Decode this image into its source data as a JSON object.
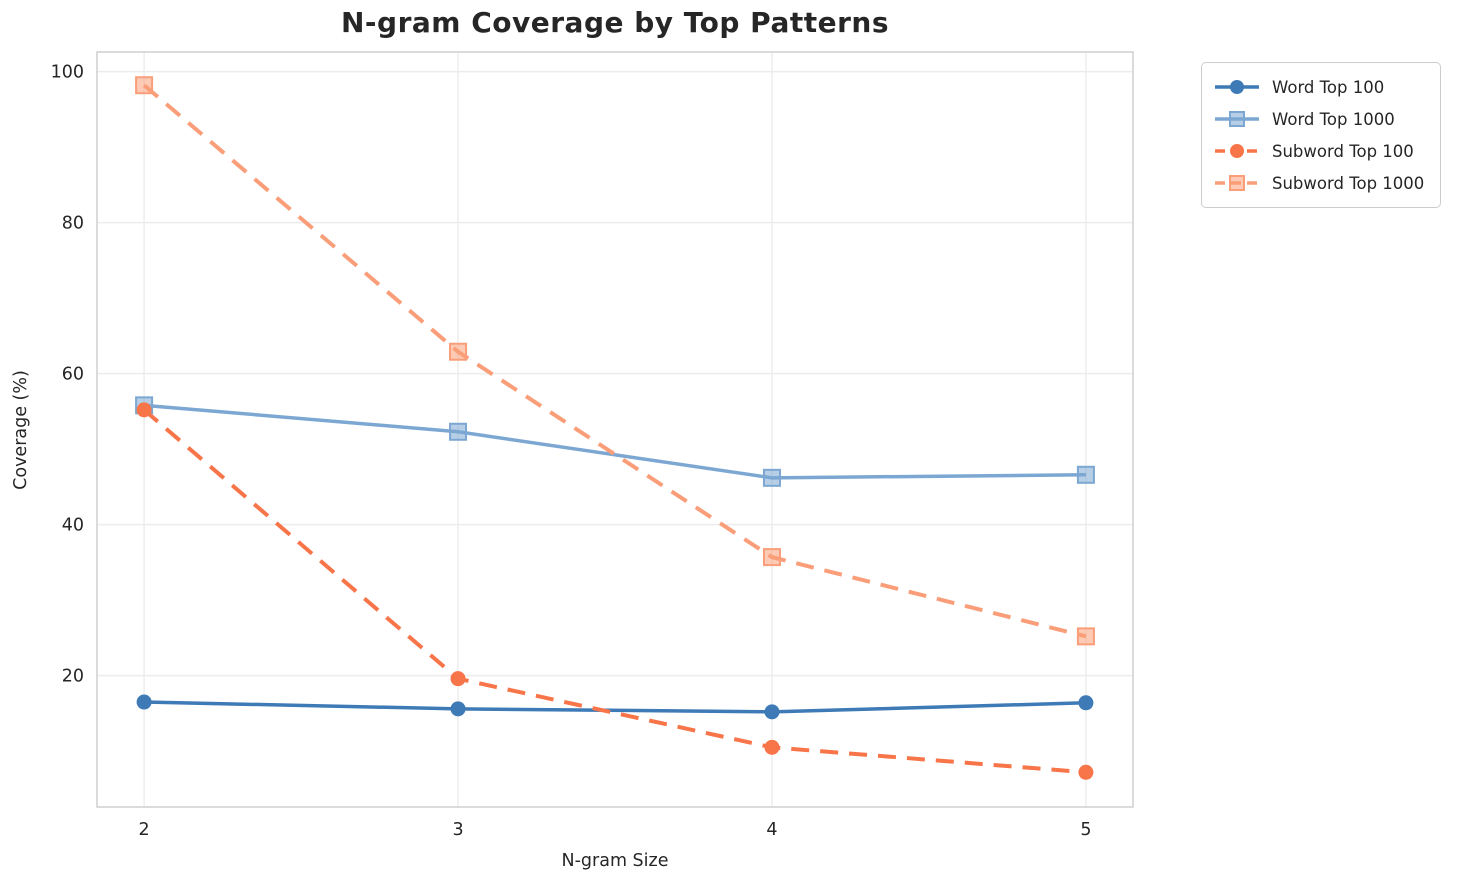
{
  "figure": {
    "background_color": "#ffffff",
    "text_color": "#262626",
    "grid_color": "#ececec",
    "spine_color": "#cfcfcf"
  },
  "chart_data": {
    "type": "line",
    "title": "N-gram Coverage by Top Patterns",
    "xlabel": "N-gram Size",
    "ylabel": "Coverage (%)",
    "x": [
      2,
      3,
      4,
      5
    ],
    "xticks": [
      "2",
      "3",
      "4",
      "5"
    ],
    "yticks": [
      20,
      40,
      60,
      80,
      100
    ],
    "xlim": [
      1.85,
      5.15
    ],
    "ylim": [
      2.6,
      102.6
    ],
    "grid": true,
    "legend_position": "outside-upper-right",
    "series": [
      {
        "name": "Word Top 100",
        "values": [
          16.5,
          15.6,
          15.2,
          16.4
        ],
        "color": "#3d7ab6",
        "marker": "circle",
        "dash": "solid"
      },
      {
        "name": "Word Top 1000",
        "values": [
          55.8,
          52.3,
          46.2,
          46.6
        ],
        "color": "#7ca7d2",
        "marker": "square",
        "dash": "solid"
      },
      {
        "name": "Subword Top 100",
        "values": [
          55.2,
          19.6,
          10.5,
          7.2
        ],
        "color": "#f87449",
        "marker": "circle",
        "dash": "dashed"
      },
      {
        "name": "Subword Top 1000",
        "values": [
          98.2,
          62.9,
          35.7,
          25.2
        ],
        "color": "#fa9e79",
        "marker": "square",
        "dash": "dashed"
      }
    ]
  }
}
